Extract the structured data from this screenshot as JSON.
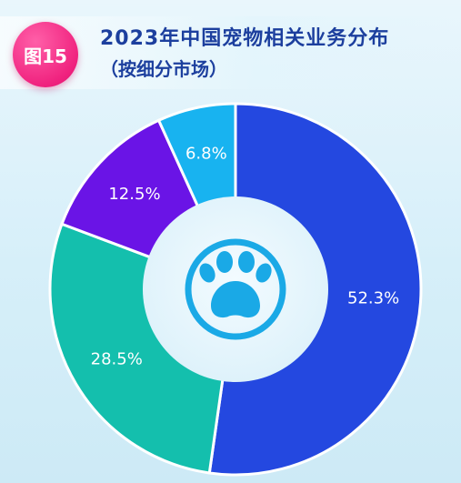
{
  "header": {
    "badge": "图15",
    "title": "2023年中国宠物相关业务分布",
    "subtitle": "（按细分市场）"
  },
  "center_icon": "paw-icon",
  "chart_data": {
    "type": "pie",
    "title": "2023年中国宠物相关业务分布",
    "subtitle": "（按细分市场）",
    "donut": true,
    "start_angle_deg": 0,
    "direction": "clockwise",
    "values": [
      52.3,
      28.5,
      12.5,
      6.8
    ],
    "labels": [
      "52.3%",
      "28.5%",
      "12.5%",
      "6.8%"
    ],
    "colors": [
      "#2448e0",
      "#14bfad",
      "#6a14e6",
      "#18b3f0"
    ],
    "legend": "none"
  }
}
